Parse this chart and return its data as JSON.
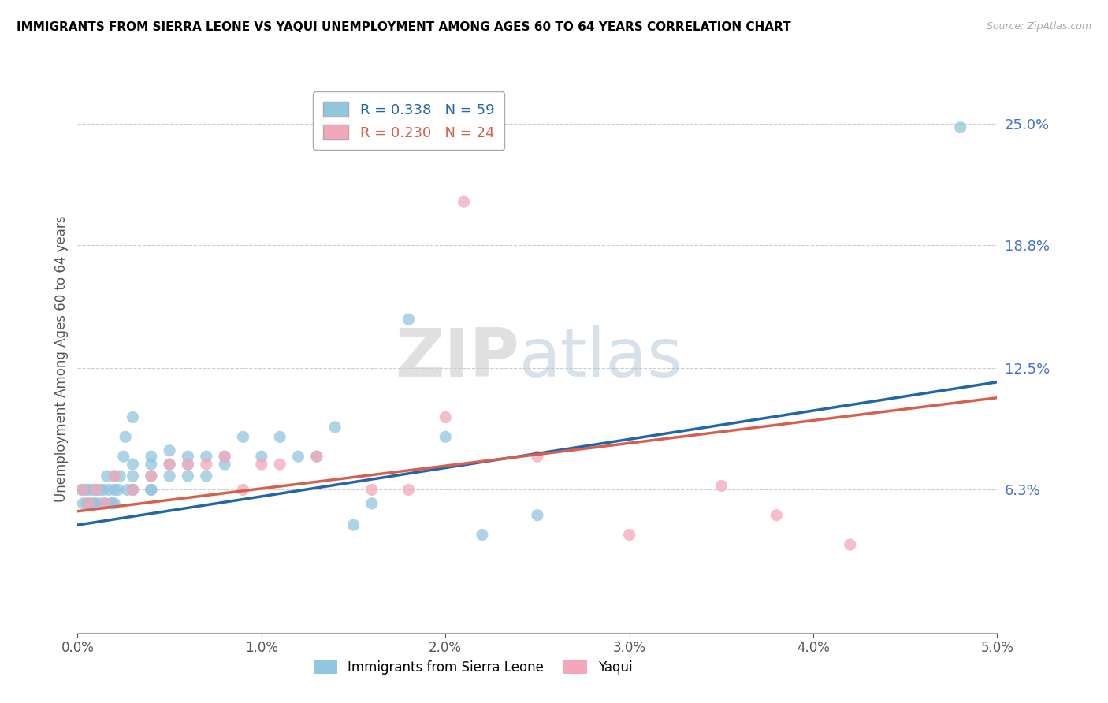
{
  "title": "IMMIGRANTS FROM SIERRA LEONE VS YAQUI UNEMPLOYMENT AMONG AGES 60 TO 64 YEARS CORRELATION CHART",
  "source": "Source: ZipAtlas.com",
  "ylabel": "Unemployment Among Ages 60 to 64 years",
  "xlim": [
    0.0,
    0.05
  ],
  "ylim": [
    -0.01,
    0.27
  ],
  "xticks": [
    0.0,
    0.01,
    0.02,
    0.03,
    0.04,
    0.05
  ],
  "xticklabels": [
    "0.0%",
    "1.0%",
    "2.0%",
    "3.0%",
    "4.0%",
    "5.0%"
  ],
  "ytick_positions": [
    0.063,
    0.125,
    0.188,
    0.25
  ],
  "yticklabels": [
    "6.3%",
    "12.5%",
    "18.8%",
    "25.0%"
  ],
  "legend1_r": "0.338",
  "legend1_n": "59",
  "legend2_r": "0.230",
  "legend2_n": "24",
  "legend_label1": "Immigrants from Sierra Leone",
  "legend_label2": "Yaqui",
  "blue_color": "#92c5de",
  "pink_color": "#f4a7b9",
  "blue_line_color": "#2166ac",
  "pink_line_color": "#d6604d",
  "watermark_zip": "ZIP",
  "watermark_atlas": "atlas",
  "blue_scatter_x": [
    0.0002,
    0.0003,
    0.0004,
    0.0005,
    0.0006,
    0.0007,
    0.0008,
    0.0009,
    0.001,
    0.001,
    0.0012,
    0.0013,
    0.0014,
    0.0015,
    0.0016,
    0.0017,
    0.0018,
    0.0019,
    0.002,
    0.002,
    0.002,
    0.0022,
    0.0023,
    0.0025,
    0.0026,
    0.0027,
    0.003,
    0.003,
    0.003,
    0.003,
    0.003,
    0.004,
    0.004,
    0.004,
    0.004,
    0.004,
    0.005,
    0.005,
    0.005,
    0.006,
    0.006,
    0.006,
    0.007,
    0.007,
    0.008,
    0.008,
    0.009,
    0.01,
    0.011,
    0.012,
    0.013,
    0.014,
    0.015,
    0.016,
    0.018,
    0.02,
    0.022,
    0.025,
    0.048
  ],
  "blue_scatter_y": [
    0.063,
    0.056,
    0.063,
    0.056,
    0.063,
    0.056,
    0.063,
    0.056,
    0.063,
    0.056,
    0.063,
    0.056,
    0.063,
    0.056,
    0.07,
    0.063,
    0.056,
    0.056,
    0.063,
    0.056,
    0.07,
    0.063,
    0.07,
    0.08,
    0.09,
    0.063,
    0.063,
    0.063,
    0.07,
    0.076,
    0.1,
    0.063,
    0.063,
    0.07,
    0.08,
    0.076,
    0.076,
    0.07,
    0.083,
    0.07,
    0.08,
    0.076,
    0.07,
    0.08,
    0.08,
    0.076,
    0.09,
    0.08,
    0.09,
    0.08,
    0.08,
    0.095,
    0.045,
    0.056,
    0.15,
    0.09,
    0.04,
    0.05,
    0.248
  ],
  "pink_scatter_x": [
    0.0003,
    0.0006,
    0.001,
    0.0015,
    0.002,
    0.003,
    0.004,
    0.005,
    0.006,
    0.007,
    0.008,
    0.009,
    0.01,
    0.011,
    0.013,
    0.016,
    0.018,
    0.02,
    0.021,
    0.025,
    0.03,
    0.035,
    0.038,
    0.042
  ],
  "pink_scatter_y": [
    0.063,
    0.056,
    0.063,
    0.056,
    0.07,
    0.063,
    0.07,
    0.076,
    0.076,
    0.076,
    0.08,
    0.063,
    0.076,
    0.076,
    0.08,
    0.063,
    0.063,
    0.1,
    0.21,
    0.08,
    0.04,
    0.065,
    0.05,
    0.035
  ],
  "blue_regline_x": [
    0.0,
    0.05
  ],
  "blue_regline_y": [
    0.045,
    0.118
  ],
  "pink_regline_x": [
    0.0,
    0.05
  ],
  "pink_regline_y": [
    0.052,
    0.11
  ]
}
